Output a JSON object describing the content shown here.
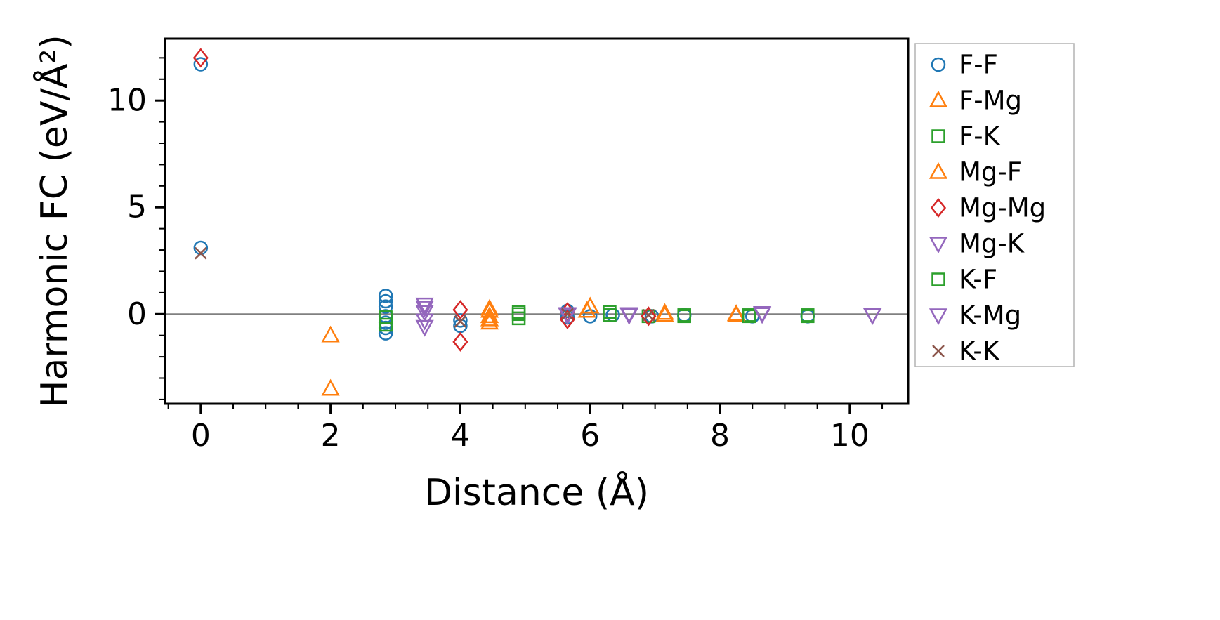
{
  "figure": {
    "background": "#ffffff",
    "frame_color": "#000000",
    "legend_border_color": "#b3b3b3"
  },
  "chart_data": {
    "type": "scatter",
    "title": "",
    "xlabel": "Distance (Å)",
    "ylabel": "Harmonic FC (eV/Å²)",
    "xlim": [
      -0.55,
      10.9
    ],
    "ylim": [
      -4.2,
      12.9
    ],
    "x_ticks": [
      0,
      2,
      4,
      6,
      8,
      10
    ],
    "y_ticks": [
      0,
      5,
      10
    ],
    "x_minor_step": 0.5,
    "y_minor_step": 1,
    "grid": false,
    "zero_line": {
      "y": 0,
      "color": "#808080"
    },
    "legend_position": "outside-right",
    "series": [
      {
        "name": "F-F",
        "marker": "circle",
        "color": "#1f77b4",
        "points": [
          [
            0,
            11.7
          ],
          [
            0,
            3.1
          ],
          [
            2.85,
            0.85
          ],
          [
            2.85,
            0.6
          ],
          [
            2.85,
            0.35
          ],
          [
            2.85,
            -0.1
          ],
          [
            2.85,
            -0.4
          ],
          [
            2.85,
            -0.65
          ],
          [
            2.85,
            -0.9
          ],
          [
            4.0,
            -0.3
          ],
          [
            4.0,
            -0.55
          ],
          [
            5.65,
            0.15
          ],
          [
            5.65,
            -0.15
          ],
          [
            6.0,
            -0.1
          ],
          [
            6.35,
            -0.05
          ],
          [
            6.95,
            -0.1
          ],
          [
            7.45,
            -0.05
          ],
          [
            8.5,
            -0.1
          ],
          [
            9.35,
            -0.1
          ]
        ]
      },
      {
        "name": "F-Mg",
        "marker": "triangle-up",
        "color": "#ff7f0e",
        "points": [
          [
            2.0,
            -1.0
          ],
          [
            2.0,
            -3.5
          ],
          [
            4.45,
            0.25
          ],
          [
            4.45,
            -0.1
          ],
          [
            4.45,
            -0.4
          ],
          [
            6.0,
            0.35
          ],
          [
            7.15,
            0.05
          ],
          [
            8.25,
            0.0
          ]
        ]
      },
      {
        "name": "F-K",
        "marker": "square",
        "color": "#2ca02c",
        "points": [
          [
            2.85,
            -0.15
          ],
          [
            2.85,
            -0.5
          ],
          [
            4.9,
            0.1
          ],
          [
            6.3,
            0.1
          ],
          [
            6.9,
            -0.1
          ],
          [
            7.45,
            -0.05
          ],
          [
            8.45,
            -0.05
          ],
          [
            9.35,
            -0.05
          ]
        ]
      },
      {
        "name": "Mg-F",
        "marker": "triangle-up",
        "color": "#ff7f0e",
        "points": [
          [
            4.45,
            0.15
          ],
          [
            4.45,
            -0.25
          ],
          [
            5.95,
            0.15
          ],
          [
            7.15,
            -0.05
          ],
          [
            8.25,
            -0.05
          ]
        ]
      },
      {
        "name": "Mg-Mg",
        "marker": "diamond",
        "color": "#d62728",
        "points": [
          [
            0,
            12.0
          ],
          [
            4.0,
            0.2
          ],
          [
            4.0,
            -1.3
          ],
          [
            5.65,
            0.1
          ],
          [
            5.65,
            -0.25
          ],
          [
            6.9,
            -0.1
          ]
        ]
      },
      {
        "name": "Mg-K",
        "marker": "triangle-down",
        "color": "#9467bd",
        "points": [
          [
            3.45,
            0.45
          ],
          [
            3.45,
            0.1
          ],
          [
            3.45,
            -0.3
          ],
          [
            3.45,
            -0.6
          ],
          [
            5.65,
            0.0
          ],
          [
            6.6,
            0.0
          ],
          [
            8.65,
            0.05
          ],
          [
            10.35,
            -0.05
          ]
        ]
      },
      {
        "name": "K-F",
        "marker": "square",
        "color": "#2ca02c",
        "points": [
          [
            4.9,
            0.0
          ],
          [
            4.9,
            -0.2
          ],
          [
            6.3,
            -0.05
          ],
          [
            7.45,
            -0.1
          ],
          [
            8.45,
            -0.1
          ],
          [
            9.35,
            -0.1
          ]
        ]
      },
      {
        "name": "K-Mg",
        "marker": "triangle-down",
        "color": "#9467bd",
        "points": [
          [
            3.45,
            0.3
          ],
          [
            5.65,
            -0.05
          ],
          [
            6.6,
            -0.05
          ],
          [
            8.65,
            0.0
          ],
          [
            10.35,
            -0.05
          ]
        ]
      },
      {
        "name": "K-K",
        "marker": "x",
        "color": "#8c564b",
        "points": [
          [
            0,
            2.85
          ],
          [
            4.0,
            -0.35
          ],
          [
            5.65,
            0.0
          ],
          [
            6.9,
            -0.05
          ]
        ]
      }
    ]
  }
}
